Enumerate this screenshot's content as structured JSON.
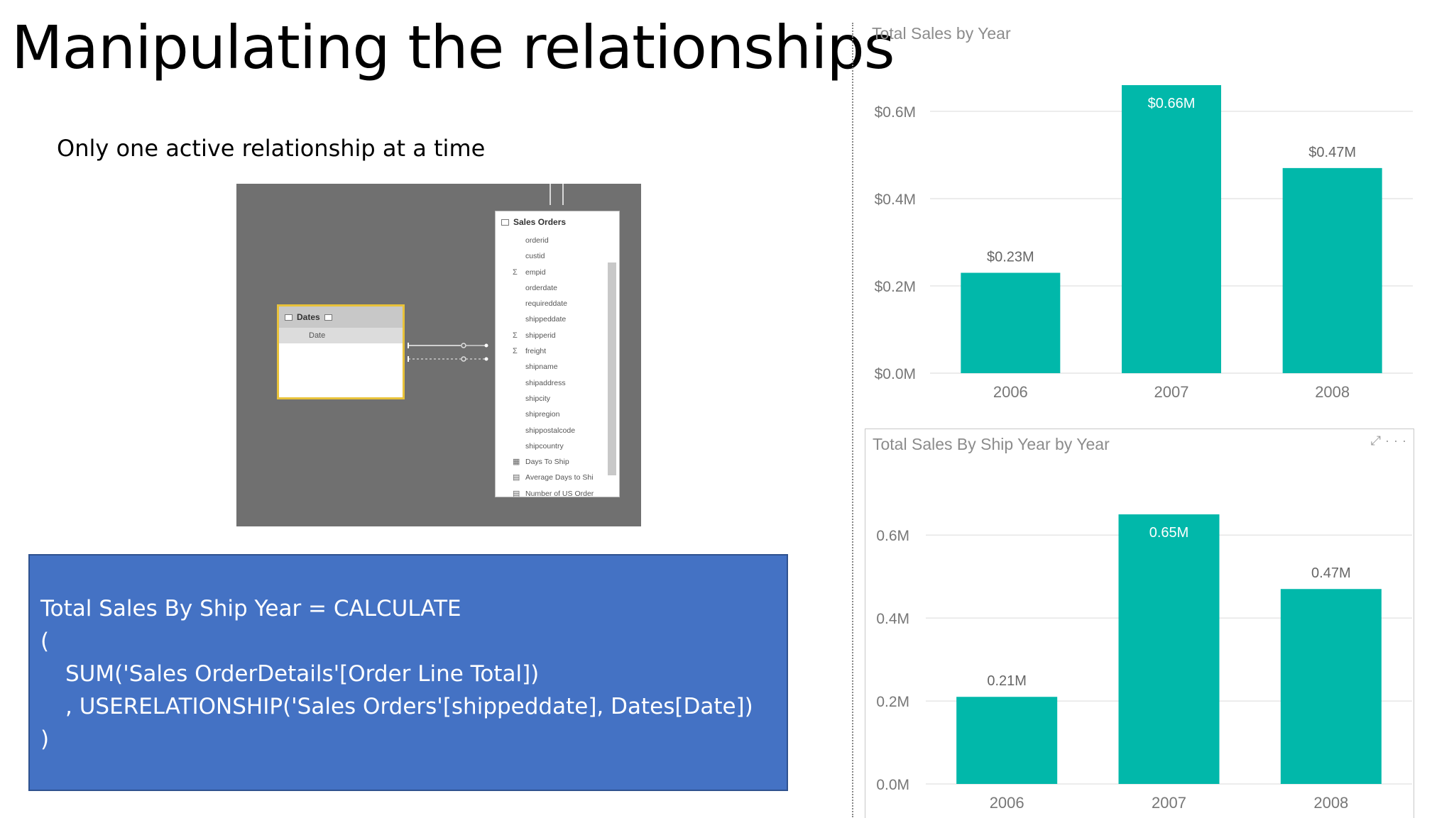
{
  "slide": {
    "title": "Manipulating the relationships",
    "subtitle": "Only one active relationship at a time"
  },
  "diagram": {
    "dates_table": {
      "name": "Dates",
      "fields": [
        "Date"
      ]
    },
    "sales_orders_table": {
      "name": "Sales Orders",
      "fields": [
        {
          "label": "orderid",
          "icon": ""
        },
        {
          "label": "custid",
          "icon": ""
        },
        {
          "label": "empid",
          "icon": "Σ"
        },
        {
          "label": "orderdate",
          "icon": ""
        },
        {
          "label": "requireddate",
          "icon": ""
        },
        {
          "label": "shippeddate",
          "icon": ""
        },
        {
          "label": "shipperid",
          "icon": "Σ"
        },
        {
          "label": "freight",
          "icon": "Σ"
        },
        {
          "label": "shipname",
          "icon": ""
        },
        {
          "label": "shipaddress",
          "icon": ""
        },
        {
          "label": "shipcity",
          "icon": ""
        },
        {
          "label": "shipregion",
          "icon": ""
        },
        {
          "label": "shippostalcode",
          "icon": ""
        },
        {
          "label": "shipcountry",
          "icon": ""
        },
        {
          "label": "Days To Ship",
          "icon": "▦"
        },
        {
          "label": "Average Days to Shi",
          "icon": "▤"
        },
        {
          "label": "Number of US Order",
          "icon": "▤"
        }
      ]
    }
  },
  "formula": {
    "lines": [
      "Total Sales By Ship Year = CALCULATE",
      "(",
      "SUM('Sales OrderDetails'[Order Line Total])",
      ", USERELATIONSHIP('Sales Orders'[shippeddate], Dates[Date])",
      ")"
    ]
  },
  "colors": {
    "bar": "#01b8aa",
    "formula_bg": "#4472c4",
    "dates_highlight": "#e8c23a"
  },
  "chart_data": [
    {
      "type": "bar",
      "title": "Total Sales by Year",
      "categories": [
        "2006",
        "2007",
        "2008"
      ],
      "values": [
        0.23,
        0.66,
        0.47
      ],
      "data_labels": [
        "$0.23M",
        "$0.66M",
        "$0.47M"
      ],
      "yticks": [
        0.0,
        0.2,
        0.4,
        0.6
      ],
      "ytick_labels": [
        "$0.0M",
        "$0.2M",
        "$0.4M",
        "$0.6M"
      ],
      "ylim": [
        0,
        0.66
      ],
      "grid": true,
      "xlabel": "",
      "ylabel": ""
    },
    {
      "type": "bar",
      "title": "Total Sales By Ship Year by Year",
      "categories": [
        "2006",
        "2007",
        "2008"
      ],
      "values": [
        0.21,
        0.65,
        0.47
      ],
      "data_labels": [
        "0.21M",
        "0.65M",
        "0.47M"
      ],
      "yticks": [
        0.0,
        0.2,
        0.4,
        0.6
      ],
      "ytick_labels": [
        "0.0M",
        "0.2M",
        "0.4M",
        "0.6M"
      ],
      "ylim": [
        0,
        0.65
      ],
      "grid": true,
      "xlabel": "",
      "ylabel": ""
    }
  ]
}
